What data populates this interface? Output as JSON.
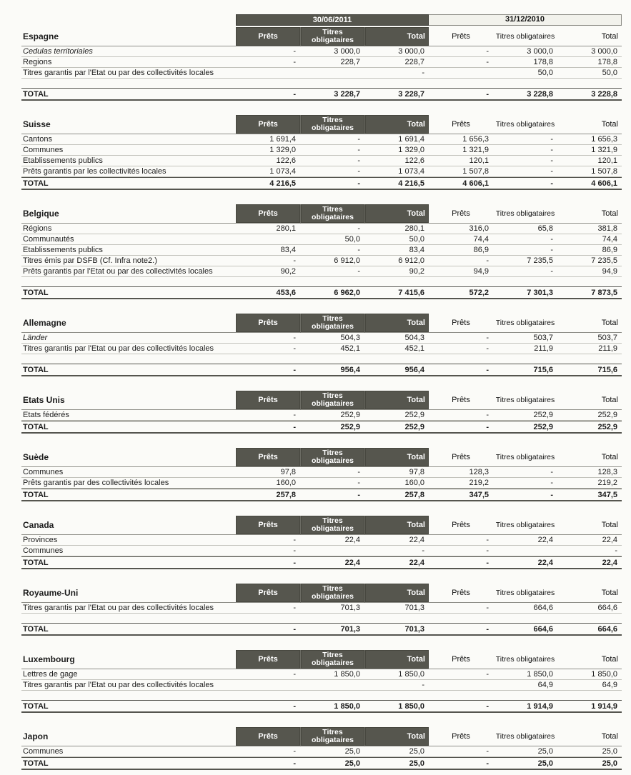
{
  "periods": [
    "30/06/2011",
    "31/12/2010"
  ],
  "headers": {
    "prets": "Prêts",
    "titres": "Titres obligataires",
    "total": "Total",
    "total_label": "TOTAL"
  },
  "colors": {
    "header_dark": "#56564e",
    "row_line": "#c3c3bc",
    "total_line": "#55554f"
  },
  "sections": [
    {
      "country": "Espagne",
      "rows": [
        {
          "label": "Cedulas territoriales",
          "italic": true,
          "v": [
            "-",
            "3 000,0",
            "3 000,0",
            "-",
            "3 000,0",
            "3 000,0"
          ]
        },
        {
          "label": "Regions",
          "v": [
            "-",
            "228,7",
            "228,7",
            "-",
            "178,8",
            "178,8"
          ]
        },
        {
          "label": "Titres garantis par l'Etat ou par des collectivités locales",
          "v": [
            "",
            "",
            "-",
            "",
            "50,0",
            "50,0"
          ]
        }
      ],
      "spacer_before_total": true,
      "total": [
        "-",
        "3 228,7",
        "3 228,7",
        "-",
        "3 228,8",
        "3 228,8"
      ]
    },
    {
      "country": "Suisse",
      "rows": [
        {
          "label": "Cantons",
          "v": [
            "1 691,4",
            "-",
            "1 691,4",
            "1 656,3",
            "-",
            "1 656,3"
          ]
        },
        {
          "label": "Communes",
          "v": [
            "1 329,0",
            "-",
            "1 329,0",
            "1 321,9",
            "-",
            "1 321,9"
          ]
        },
        {
          "label": "Etablissements publics",
          "v": [
            "122,6",
            "-",
            "122,6",
            "120,1",
            "-",
            "120,1"
          ]
        },
        {
          "label": "Prêts garantis par les collectivités locales",
          "v": [
            "1 073,4",
            "-",
            "1 073,4",
            "1 507,8",
            "-",
            "1 507,8"
          ]
        }
      ],
      "spacer_before_total": false,
      "total": [
        "4 216,5",
        "-",
        "4 216,5",
        "4 606,1",
        "-",
        "4 606,1"
      ]
    },
    {
      "country": "Belgique",
      "rows": [
        {
          "label": "Régions",
          "v": [
            "280,1",
            "-",
            "280,1",
            "316,0",
            "65,8",
            "381,8"
          ]
        },
        {
          "label": "Communautés",
          "v": [
            "",
            "50,0",
            "50,0",
            "74,4",
            "-",
            "74,4"
          ]
        },
        {
          "label": "Etablissements publics",
          "v": [
            "83,4",
            "-",
            "83,4",
            "86,9",
            "-",
            "86,9"
          ]
        },
        {
          "label": "Titres émis par DSFB  (Cf. Infra note2.)",
          "v": [
            "-",
            "6 912,0",
            "6 912,0",
            "-",
            "7 235,5",
            "7 235,5"
          ]
        },
        {
          "label": "Prêts garantis par l'Etat ou par des collectivités locales",
          "v": [
            "90,2",
            "-",
            "90,2",
            "94,9",
            "-",
            "94,9"
          ]
        }
      ],
      "spacer_before_total": true,
      "total": [
        "453,6",
        "6 962,0",
        "7 415,6",
        "572,2",
        "7 301,3",
        "7 873,5"
      ]
    },
    {
      "country": "Allemagne",
      "rows": [
        {
          "label": "Länder",
          "italic": true,
          "v": [
            "-",
            "504,3",
            "504,3",
            "-",
            "503,7",
            "503,7"
          ]
        },
        {
          "label": "Titres garantis par l'Etat ou par des collectivités locales",
          "v": [
            "-",
            "452,1",
            "452,1",
            "-",
            "211,9",
            "211,9"
          ]
        }
      ],
      "spacer_before_total": true,
      "total": [
        "-",
        "956,4",
        "956,4",
        "-",
        "715,6",
        "715,6"
      ]
    },
    {
      "country": "Etats Unis",
      "rows": [
        {
          "label": "Etats fédérés",
          "v": [
            "-",
            "252,9",
            "252,9",
            "-",
            "252,9",
            "252,9"
          ]
        }
      ],
      "spacer_before_total": false,
      "total": [
        "-",
        "252,9",
        "252,9",
        "-",
        "252,9",
        "252,9"
      ]
    },
    {
      "country": "Suède",
      "rows": [
        {
          "label": "Communes",
          "v": [
            "97,8",
            "-",
            "97,8",
            "128,3",
            "-",
            "128,3"
          ]
        },
        {
          "label": "Prêts garantis par des collectivités locales",
          "v": [
            "160,0",
            "-",
            "160,0",
            "219,2",
            "-",
            "219,2"
          ]
        }
      ],
      "spacer_before_total": false,
      "total": [
        "257,8",
        "-",
        "257,8",
        "347,5",
        "-",
        "347,5"
      ]
    },
    {
      "country": "Canada",
      "rows": [
        {
          "label": "Provinces",
          "v": [
            "-",
            "22,4",
            "22,4",
            "-",
            "22,4",
            "22,4"
          ]
        },
        {
          "label": "Communes",
          "v": [
            "-",
            "",
            "-",
            "-",
            "",
            "-"
          ]
        }
      ],
      "spacer_before_total": false,
      "total": [
        "-",
        "22,4",
        "22,4",
        "-",
        "22,4",
        "22,4"
      ]
    },
    {
      "country": "Royaume-Uni",
      "rows": [
        {
          "label": "Titres garantis par l'Etat ou par des collectivités locales",
          "v": [
            "-",
            "701,3",
            "701,3",
            "-",
            "664,6",
            "664,6"
          ]
        }
      ],
      "spacer_before_total": true,
      "total": [
        "-",
        "701,3",
        "701,3",
        "-",
        "664,6",
        "664,6"
      ]
    },
    {
      "country": "Luxembourg",
      "rows": [
        {
          "label": "Lettres de gage",
          "v": [
            "-",
            "1 850,0",
            "1 850,0",
            "-",
            "1 850,0",
            "1 850,0"
          ]
        },
        {
          "label": "Titres garantis par l'Etat ou par des collectivités locales",
          "v": [
            "",
            "",
            "-",
            "",
            "64,9",
            "64,9"
          ]
        }
      ],
      "spacer_before_total": true,
      "total": [
        "-",
        "1 850,0",
        "1 850,0",
        "-",
        "1 914,9",
        "1 914,9"
      ]
    },
    {
      "country": "Japon",
      "rows": [
        {
          "label": "Communes",
          "v": [
            "-",
            "25,0",
            "25,0",
            "-",
            "25,0",
            "25,0"
          ]
        }
      ],
      "spacer_before_total": false,
      "total": [
        "-",
        "25,0",
        "25,0",
        "-",
        "25,0",
        "25,0"
      ]
    }
  ]
}
